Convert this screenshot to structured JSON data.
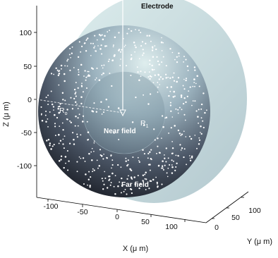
{
  "labels": {
    "electrode": "Electrode",
    "near_field": "Near field",
    "far_field": "Far field",
    "r0_main": "R",
    "r0_sub": "o",
    "r1_main": "R",
    "r1_sub": "1"
  },
  "axes": {
    "z": {
      "label": "Z (μ m)",
      "ticks": [
        "100",
        "50",
        "0",
        "-50",
        "-100"
      ]
    },
    "x": {
      "label": "X (μ m)",
      "ticks": [
        "-100",
        "-50",
        "0",
        "50",
        "100"
      ]
    },
    "y": {
      "label": "Y (μ m)",
      "ticks": [
        "0",
        "50",
        "100"
      ]
    }
  },
  "colors": {
    "outer_top": "#cfe3e4",
    "outer_mid": "#7c93a6",
    "outer_bottom": "#20252f",
    "inner": "#8aa4b0",
    "dots": "#ffffff",
    "electrode": "#ffffff",
    "axes": "#000000"
  },
  "dot_count": 560
}
